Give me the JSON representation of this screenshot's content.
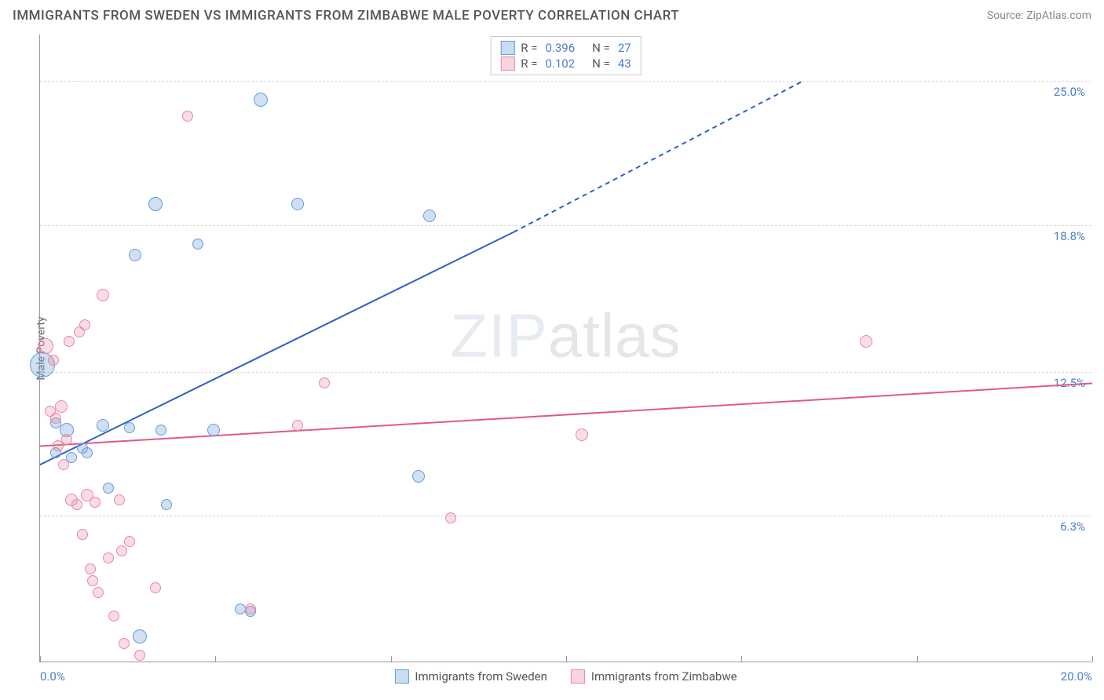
{
  "title": "IMMIGRANTS FROM SWEDEN VS IMMIGRANTS FROM ZIMBABWE MALE POVERTY CORRELATION CHART",
  "source": "Source: ZipAtlas.com",
  "ylabel": "Male Poverty",
  "watermark_a": "ZIP",
  "watermark_b": "atlas",
  "chart": {
    "type": "scatter",
    "background": "#ffffff",
    "grid_color": "#d8d8d8",
    "axis_color": "#999999",
    "xlim": [
      0,
      20
    ],
    "ylim": [
      0,
      27
    ],
    "xticks": [
      0.0,
      3.33,
      6.67,
      10.0,
      13.33,
      16.67,
      20.0
    ],
    "xticks_labeled": [
      {
        "v": 0,
        "l": "0.0%"
      },
      {
        "v": 20,
        "l": "20.0%"
      }
    ],
    "ygrid": [
      {
        "v": 6.3,
        "l": "6.3%"
      },
      {
        "v": 12.5,
        "l": "12.5%"
      },
      {
        "v": 18.8,
        "l": "18.8%"
      },
      {
        "v": 25.0,
        "l": "25.0%"
      }
    ],
    "series": [
      {
        "name": "Immigrants from Sweden",
        "color_fill": "rgba(120,165,220,0.35)",
        "color_stroke": "#6a9bd8",
        "swatch_fill": "#c9dcf0",
        "swatch_border": "#6a9bd8",
        "R": "0.396",
        "N": "27",
        "trend": {
          "x1": 0,
          "y1": 8.5,
          "x2": 9.0,
          "y2": 18.5,
          "x2b": 14.5,
          "y2b": 25.0,
          "color": "#2d5fc4",
          "width": 2
        },
        "points": [
          {
            "x": 0.05,
            "y": 12.8,
            "r": 16
          },
          {
            "x": 0.3,
            "y": 9.0,
            "r": 7
          },
          {
            "x": 0.3,
            "y": 10.3,
            "r": 7
          },
          {
            "x": 0.5,
            "y": 10.0,
            "r": 9
          },
          {
            "x": 0.6,
            "y": 8.8,
            "r": 7
          },
          {
            "x": 0.8,
            "y": 9.2,
            "r": 7
          },
          {
            "x": 0.9,
            "y": 9.0,
            "r": 7
          },
          {
            "x": 1.2,
            "y": 10.2,
            "r": 8
          },
          {
            "x": 1.3,
            "y": 7.5,
            "r": 7
          },
          {
            "x": 1.7,
            "y": 10.1,
            "r": 7
          },
          {
            "x": 1.8,
            "y": 17.5,
            "r": 8
          },
          {
            "x": 1.9,
            "y": 1.1,
            "r": 9
          },
          {
            "x": 2.2,
            "y": 19.7,
            "r": 9
          },
          {
            "x": 2.3,
            "y": 10.0,
            "r": 7
          },
          {
            "x": 2.4,
            "y": 6.8,
            "r": 7
          },
          {
            "x": 3.0,
            "y": 18.0,
            "r": 7
          },
          {
            "x": 3.3,
            "y": 10.0,
            "r": 8
          },
          {
            "x": 3.8,
            "y": 2.3,
            "r": 7
          },
          {
            "x": 4.0,
            "y": 2.2,
            "r": 7
          },
          {
            "x": 4.2,
            "y": 24.2,
            "r": 9
          },
          {
            "x": 4.9,
            "y": 19.7,
            "r": 8
          },
          {
            "x": 7.2,
            "y": 8.0,
            "r": 8
          },
          {
            "x": 7.4,
            "y": 19.2,
            "r": 8
          }
        ]
      },
      {
        "name": "Immigrants from Zimbabwe",
        "color_fill": "rgba(236,140,165,0.30)",
        "color_stroke": "#e68aa3",
        "swatch_fill": "#f7d4de",
        "swatch_border": "#e68aa3",
        "R": "0.102",
        "N": "43",
        "trend": {
          "x1": 0,
          "y1": 9.3,
          "x2": 20,
          "y2": 12.0,
          "color": "#e05a85",
          "width": 2
        },
        "points": [
          {
            "x": 0.1,
            "y": 13.6,
            "r": 10
          },
          {
            "x": 0.2,
            "y": 10.8,
            "r": 7
          },
          {
            "x": 0.25,
            "y": 13.0,
            "r": 7
          },
          {
            "x": 0.3,
            "y": 10.5,
            "r": 7
          },
          {
            "x": 0.35,
            "y": 9.3,
            "r": 7
          },
          {
            "x": 0.4,
            "y": 11.0,
            "r": 8
          },
          {
            "x": 0.45,
            "y": 8.5,
            "r": 7
          },
          {
            "x": 0.5,
            "y": 9.6,
            "r": 7
          },
          {
            "x": 0.55,
            "y": 13.8,
            "r": 7
          },
          {
            "x": 0.6,
            "y": 7.0,
            "r": 8
          },
          {
            "x": 0.7,
            "y": 6.8,
            "r": 7
          },
          {
            "x": 0.75,
            "y": 14.2,
            "r": 7
          },
          {
            "x": 0.8,
            "y": 5.5,
            "r": 7
          },
          {
            "x": 0.85,
            "y": 14.5,
            "r": 7
          },
          {
            "x": 0.9,
            "y": 7.2,
            "r": 8
          },
          {
            "x": 0.95,
            "y": 4.0,
            "r": 7
          },
          {
            "x": 1.0,
            "y": 3.5,
            "r": 7
          },
          {
            "x": 1.05,
            "y": 6.9,
            "r": 7
          },
          {
            "x": 1.1,
            "y": 3.0,
            "r": 7
          },
          {
            "x": 1.2,
            "y": 15.8,
            "r": 8
          },
          {
            "x": 1.3,
            "y": 4.5,
            "r": 7
          },
          {
            "x": 1.4,
            "y": 2.0,
            "r": 7
          },
          {
            "x": 1.5,
            "y": 7.0,
            "r": 7
          },
          {
            "x": 1.55,
            "y": 4.8,
            "r": 7
          },
          {
            "x": 1.6,
            "y": 0.8,
            "r": 7
          },
          {
            "x": 1.7,
            "y": 5.2,
            "r": 7
          },
          {
            "x": 1.9,
            "y": 0.3,
            "r": 7
          },
          {
            "x": 2.2,
            "y": 3.2,
            "r": 7
          },
          {
            "x": 2.8,
            "y": 23.5,
            "r": 7
          },
          {
            "x": 4.0,
            "y": 2.3,
            "r": 7
          },
          {
            "x": 4.9,
            "y": 10.2,
            "r": 7
          },
          {
            "x": 5.4,
            "y": 12.0,
            "r": 7
          },
          {
            "x": 7.8,
            "y": 6.2,
            "r": 7
          },
          {
            "x": 10.3,
            "y": 9.8,
            "r": 8
          },
          {
            "x": 15.7,
            "y": 13.8,
            "r": 8
          }
        ]
      }
    ]
  },
  "bottom_legend": [
    {
      "label": "Immigrants from Sweden",
      "fill": "#c9dcf0",
      "border": "#6a9bd8"
    },
    {
      "label": "Immigrants from Zimbabwe",
      "fill": "#f7d4de",
      "border": "#e68aa3"
    }
  ]
}
